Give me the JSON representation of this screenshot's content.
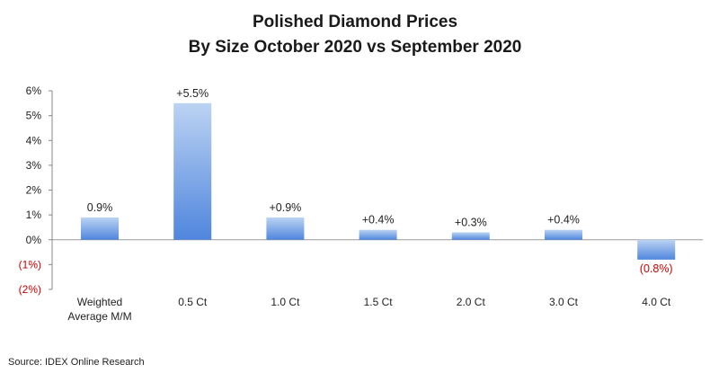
{
  "chart_data": {
    "type": "bar",
    "title": "Polished Diamond Prices",
    "subtitle": "By Size October 2020 vs September 2020",
    "categories": [
      "Weighted\nAverage M/M",
      "0.5 Ct",
      "1.0 Ct",
      "1.5 Ct",
      "2.0 Ct",
      "3.0 Ct",
      "4.0 Ct"
    ],
    "values": [
      0.9,
      5.5,
      0.9,
      0.4,
      0.3,
      0.4,
      -0.8
    ],
    "data_labels": [
      "0.9%",
      "+5.5%",
      "+0.9%",
      "+0.4%",
      "+0.3%",
      "+0.4%",
      "(0.8%)"
    ],
    "ylim": [
      -2,
      6
    ],
    "yticks": [
      6,
      5,
      4,
      3,
      2,
      1,
      0,
      -1,
      -2
    ],
    "ytick_labels": [
      "6%",
      "5%",
      "4%",
      "3%",
      "2%",
      "1%",
      "0%",
      "(1%)",
      "(2%)"
    ],
    "grid": false,
    "colors": {
      "bar_light": "#bcd3f3",
      "bar_dark": "#4f86dd",
      "negative_text": "#cc0000"
    }
  },
  "source": "Source:  IDEX Online Research"
}
